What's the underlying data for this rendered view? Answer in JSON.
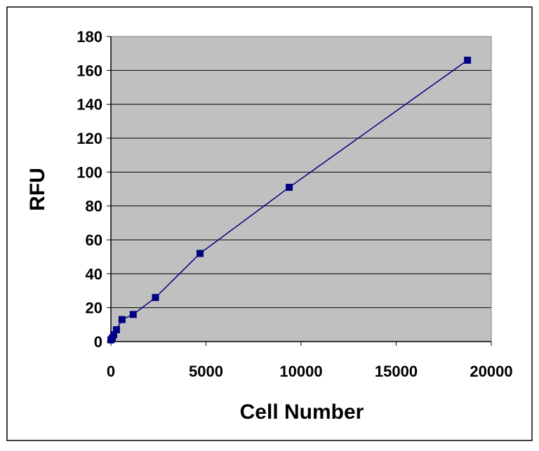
{
  "chart_data": {
    "type": "scatter",
    "x_label": "Cell Number",
    "y_label": "RFU",
    "series": [
      {
        "color": "#000080",
        "x": [
          0,
          73,
          146,
          293,
          586,
          1172,
          2344,
          4688,
          9375,
          18750
        ],
        "values": [
          1,
          2,
          4,
          7,
          13,
          16,
          26,
          52,
          91,
          166
        ]
      }
    ],
    "xlim": [
      0,
      20000
    ],
    "xticks": [
      0,
      5000,
      10000,
      15000,
      20000
    ],
    "ylim": [
      0,
      180
    ],
    "yticks": [
      0,
      20,
      40,
      60,
      80,
      100,
      120,
      140,
      160,
      180
    ],
    "grid": true,
    "plot_background": "#c0c0c0",
    "connect_points": true
  }
}
